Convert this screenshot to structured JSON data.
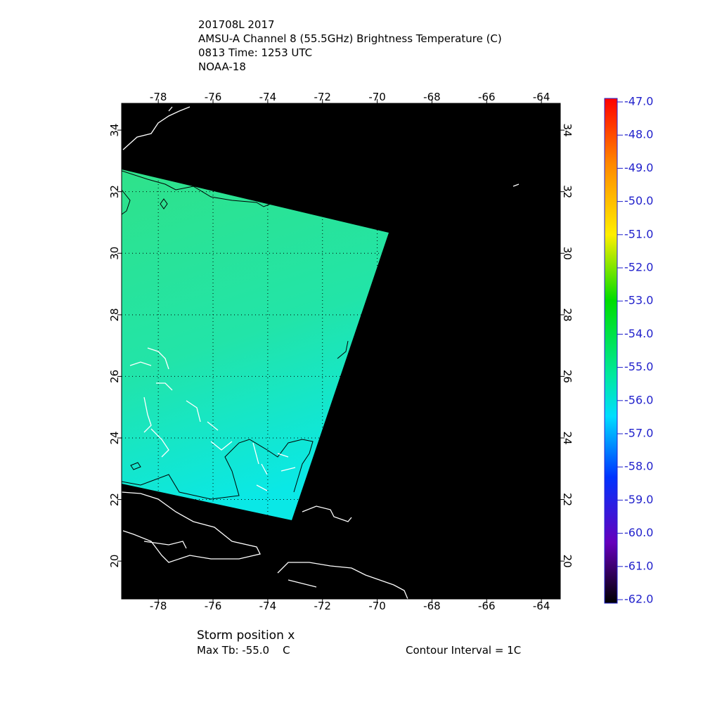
{
  "header": {
    "lines": [
      "201708L 2017",
      "AMSU-A Channel 8 (55.5GHz) Brightness Temperature (C)",
      "0813 Time: 1253 UTC",
      "NOAA-18"
    ]
  },
  "map": {
    "lon_range": [
      -79.34,
      -63.31
    ],
    "lat_range": [
      18.77,
      34.87
    ],
    "lon_ticks": [
      -78,
      -76,
      -74,
      -72,
      -70,
      -68,
      -66,
      -64
    ],
    "lat_ticks": [
      20,
      22,
      24,
      26,
      28,
      30,
      32,
      34
    ]
  },
  "colorbar": {
    "range": [
      -62,
      -47
    ],
    "ticks": [
      {
        "value": -47,
        "label": "-47.0"
      },
      {
        "value": -48,
        "label": "-48.0"
      },
      {
        "value": -49,
        "label": "-49.0"
      },
      {
        "value": -50,
        "label": "-50.0"
      },
      {
        "value": -51,
        "label": "-51.0"
      },
      {
        "value": -52,
        "label": "-52.0"
      },
      {
        "value": -53,
        "label": "-53.0"
      },
      {
        "value": -54,
        "label": "-54.0"
      },
      {
        "value": -55,
        "label": "-55.0"
      },
      {
        "value": -56,
        "label": "-56.0"
      },
      {
        "value": -57,
        "label": "-57.0"
      },
      {
        "value": -58,
        "label": "-58.0"
      },
      {
        "value": -59,
        "label": "-59.0"
      },
      {
        "value": -60,
        "label": "-60.0"
      },
      {
        "value": -61,
        "label": "-61.0"
      },
      {
        "value": -62,
        "label": "-62.0"
      }
    ]
  },
  "footer": {
    "storm_position": "Storm position x",
    "max_tb": "Max Tb: -55.0    C",
    "contour_interval": "Contour Interval = 1C"
  }
}
